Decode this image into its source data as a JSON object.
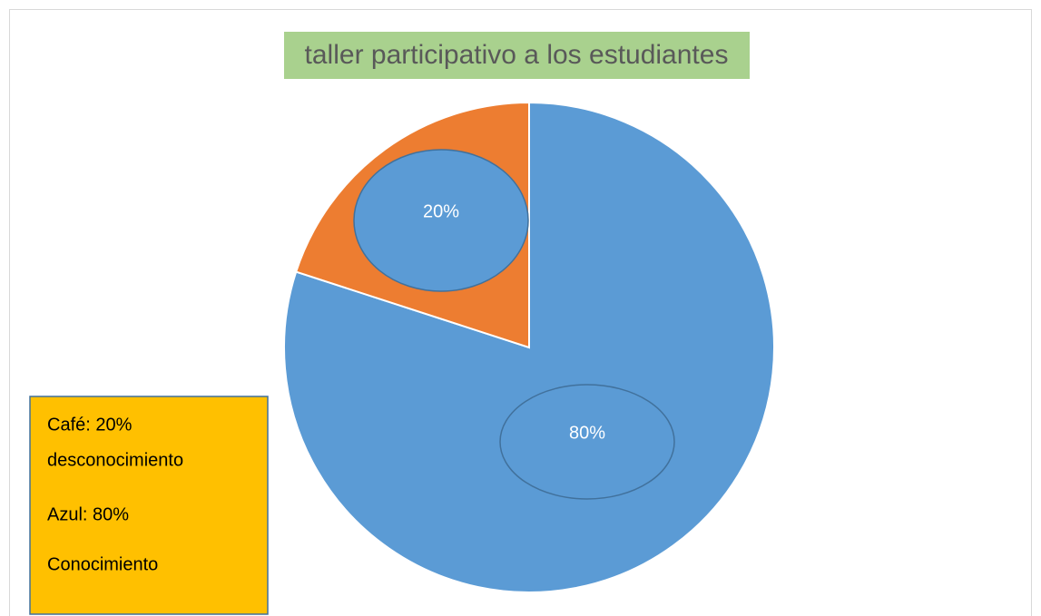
{
  "chart_data": {
    "type": "pie",
    "title": "taller participativo a los estudiantes",
    "values": [
      80,
      20
    ],
    "value_labels": [
      "80%",
      "20%"
    ],
    "colors": [
      "#5b9bd5",
      "#ed7d31"
    ],
    "annotations": [
      "Café: 20%",
      "desconocimiento",
      "Azul: 80%",
      "Conocimiento"
    ]
  }
}
